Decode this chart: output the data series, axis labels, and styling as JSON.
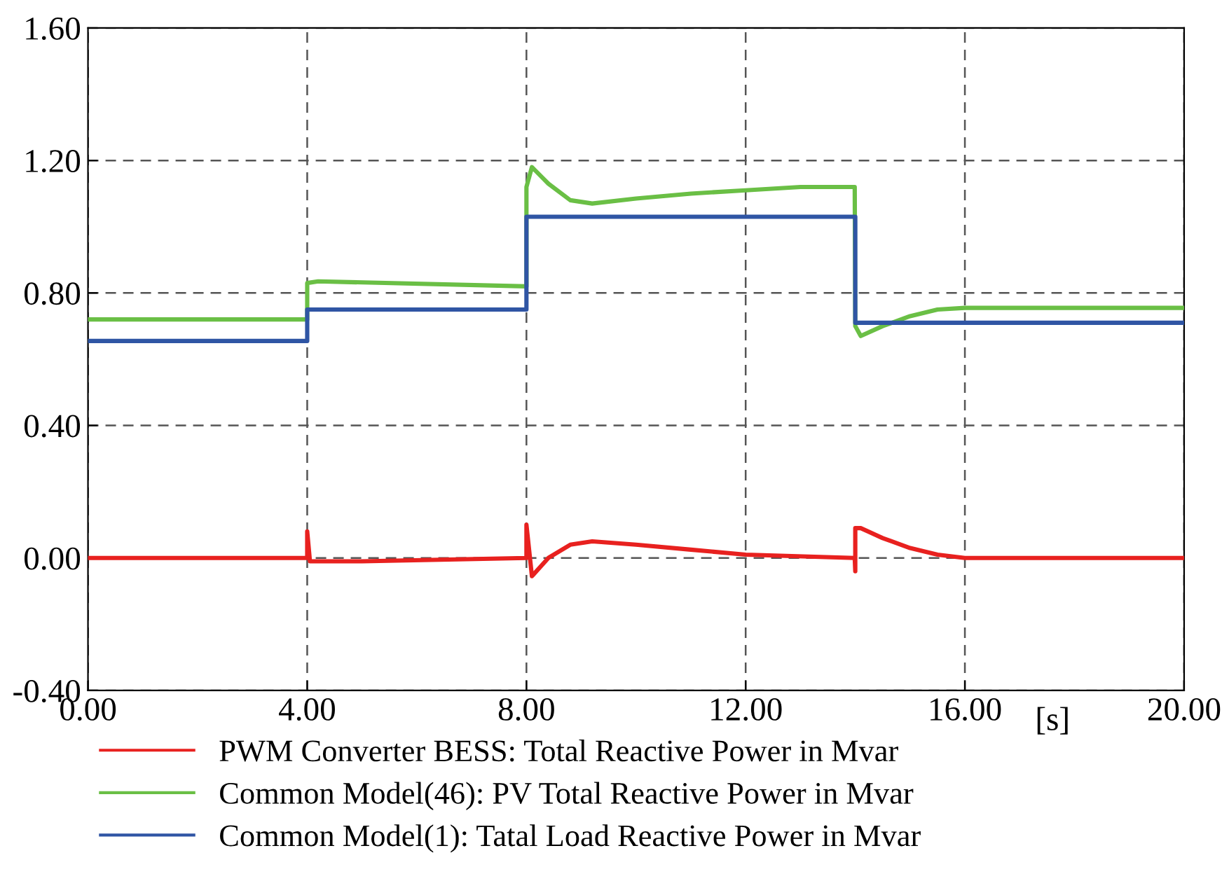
{
  "chart_data": {
    "type": "line",
    "xlabel": "[s]",
    "xlim": [
      0,
      20
    ],
    "ylim": [
      -0.4,
      1.6
    ],
    "xticks": [
      {
        "value": 0,
        "label": "0.00"
      },
      {
        "value": 4,
        "label": "4.00"
      },
      {
        "value": 8,
        "label": "8.00"
      },
      {
        "value": 12,
        "label": "12.00"
      },
      {
        "value": 16,
        "label": "16.00"
      },
      {
        "value": 20,
        "label": "20.00"
      }
    ],
    "yticks": [
      {
        "value": -0.4,
        "label": "-0.40"
      },
      {
        "value": 0,
        "label": "0.00"
      },
      {
        "value": 0.4,
        "label": "0.40"
      },
      {
        "value": 0.8,
        "label": "0.80"
      },
      {
        "value": 1.2,
        "label": "1.20"
      },
      {
        "value": 1.6,
        "label": "1.60"
      }
    ],
    "grid": true,
    "legend": "bottom",
    "line_style": "solid",
    "marker": "none",
    "series": [
      {
        "name": "PWM Converter BESS: Total Reactive Power in Mvar",
        "color": "#e8211f",
        "x": [
          0,
          4,
          4,
          4.05,
          5,
          8,
          8,
          8.1,
          8.4,
          8.8,
          9.2,
          10,
          11,
          12,
          13.99,
          14,
          14,
          14.1,
          14.5,
          15,
          15.5,
          16,
          17,
          20
        ],
        "values": [
          0,
          0,
          0.08,
          -0.01,
          -0.01,
          0,
          0.1,
          -0.055,
          0,
          0.04,
          0.05,
          0.04,
          0.025,
          0.01,
          0,
          -0.04,
          0.09,
          0.09,
          0.06,
          0.03,
          0.01,
          0,
          0,
          0
        ]
      },
      {
        "name": "Common Model(46): PV Total Reactive Power in Mvar",
        "color": "#6abf45",
        "x": [
          0,
          4,
          4,
          4.2,
          8,
          8,
          8.1,
          8.4,
          8.8,
          9.2,
          10,
          11,
          12,
          13,
          13.99,
          14,
          14.1,
          14.5,
          15,
          15.5,
          16,
          20
        ],
        "values": [
          0.72,
          0.72,
          0.83,
          0.835,
          0.82,
          1.12,
          1.18,
          1.13,
          1.08,
          1.07,
          1.085,
          1.1,
          1.11,
          1.12,
          1.12,
          0.7,
          0.67,
          0.7,
          0.73,
          0.75,
          0.755,
          0.755
        ]
      },
      {
        "name": "Common Model(1): Tatal Load Reactive Power in Mvar",
        "color": "#2f55a4",
        "x": [
          0,
          4,
          4,
          8,
          8,
          14,
          14,
          20
        ],
        "values": [
          0.655,
          0.655,
          0.75,
          0.75,
          1.03,
          1.03,
          0.71,
          0.71
        ]
      }
    ]
  }
}
